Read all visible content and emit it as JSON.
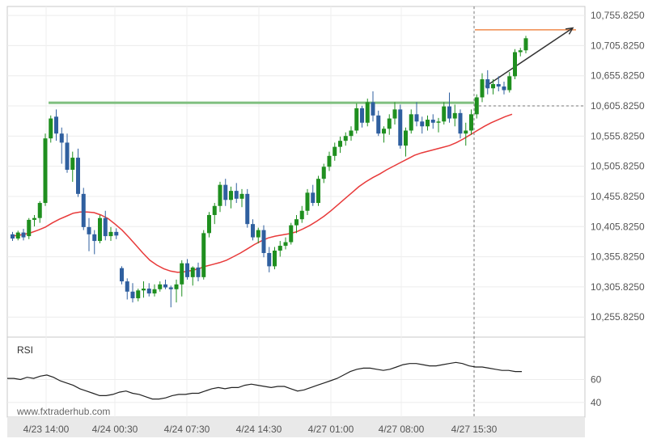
{
  "watermark": "www.fxtraderhub.com",
  "chart_data": [
    {
      "type": "candlestick",
      "y_ticks": [
        "10,755.8250",
        "10,705.8250",
        "10,655.8250",
        "10,605.8250",
        "10,555.8250",
        "10,505.8250",
        "10,455.8250",
        "10,405.8250",
        "10,355.8250",
        "10,305.8250",
        "10,255.8250"
      ],
      "y_tick_values": [
        10755.825,
        10705.825,
        10655.825,
        10605.825,
        10555.825,
        10505.825,
        10455.825,
        10405.825,
        10355.825,
        10305.825,
        10255.825
      ],
      "ylim": [
        10232,
        10768
      ],
      "x_ticks": [
        "4/23 14:00",
        "4/24 00:30",
        "4/24 07:30",
        "4/24 14:30",
        "4/27 01:00",
        "4/27 08:00",
        "4/27 15:30"
      ],
      "resistance_level": 10611,
      "current_level": 10605.825,
      "target_level": 10732,
      "grid": true,
      "colors": {
        "up": "#1f8f1f",
        "down": "#2f5f9f",
        "ma": "#e83a3a",
        "resistance": "#7fbf7f",
        "target": "#f08a4b",
        "arrow": "#333333",
        "rsi": "#222222"
      },
      "candles": [
        {
          "o": 10393,
          "h": 10397,
          "l": 10382,
          "c": 10386
        },
        {
          "o": 10386,
          "h": 10399,
          "l": 10383,
          "c": 10396
        },
        {
          "o": 10396,
          "h": 10402,
          "l": 10383,
          "c": 10388
        },
        {
          "o": 10390,
          "h": 10420,
          "l": 10385,
          "c": 10417
        },
        {
          "o": 10417,
          "h": 10425,
          "l": 10406,
          "c": 10420
        },
        {
          "o": 10420,
          "h": 10448,
          "l": 10412,
          "c": 10445
        },
        {
          "o": 10445,
          "h": 10560,
          "l": 10440,
          "c": 10552
        },
        {
          "o": 10552,
          "h": 10590,
          "l": 10545,
          "c": 10585
        },
        {
          "o": 10588,
          "h": 10600,
          "l": 10548,
          "c": 10560
        },
        {
          "o": 10560,
          "h": 10570,
          "l": 10510,
          "c": 10545
        },
        {
          "o": 10545,
          "h": 10560,
          "l": 10495,
          "c": 10500
        },
        {
          "o": 10500,
          "h": 10530,
          "l": 10480,
          "c": 10520
        },
        {
          "o": 10520,
          "h": 10535,
          "l": 10455,
          "c": 10460
        },
        {
          "o": 10460,
          "h": 10470,
          "l": 10400,
          "c": 10405
        },
        {
          "o": 10405,
          "h": 10420,
          "l": 10365,
          "c": 10393
        },
        {
          "o": 10393,
          "h": 10400,
          "l": 10360,
          "c": 10382
        },
        {
          "o": 10382,
          "h": 10425,
          "l": 10378,
          "c": 10420
        },
        {
          "o": 10420,
          "h": 10432,
          "l": 10383,
          "c": 10390
        },
        {
          "o": 10390,
          "h": 10405,
          "l": 10382,
          "c": 10397
        },
        {
          "o": 10397,
          "h": 10403,
          "l": 10385,
          "c": 10391
        },
        {
          "o": 10337,
          "h": 10340,
          "l": 10310,
          "c": 10315
        },
        {
          "o": 10315,
          "h": 10320,
          "l": 10285,
          "c": 10298
        },
        {
          "o": 10298,
          "h": 10312,
          "l": 10280,
          "c": 10287
        },
        {
          "o": 10287,
          "h": 10303,
          "l": 10282,
          "c": 10300
        },
        {
          "o": 10300,
          "h": 10315,
          "l": 10288,
          "c": 10303
        },
        {
          "o": 10303,
          "h": 10312,
          "l": 10290,
          "c": 10295
        },
        {
          "o": 10295,
          "h": 10310,
          "l": 10290,
          "c": 10302
        },
        {
          "o": 10302,
          "h": 10315,
          "l": 10298,
          "c": 10310
        },
        {
          "o": 10310,
          "h": 10318,
          "l": 10302,
          "c": 10305
        },
        {
          "o": 10305,
          "h": 10308,
          "l": 10272,
          "c": 10302
        },
        {
          "o": 10302,
          "h": 10318,
          "l": 10280,
          "c": 10310
        },
        {
          "o": 10310,
          "h": 10350,
          "l": 10290,
          "c": 10345
        },
        {
          "o": 10345,
          "h": 10352,
          "l": 10318,
          "c": 10322
        },
        {
          "o": 10322,
          "h": 10340,
          "l": 10308,
          "c": 10338
        },
        {
          "o": 10338,
          "h": 10346,
          "l": 10315,
          "c": 10322
        },
        {
          "o": 10322,
          "h": 10400,
          "l": 10318,
          "c": 10395
        },
        {
          "o": 10395,
          "h": 10430,
          "l": 10388,
          "c": 10425
        },
        {
          "o": 10425,
          "h": 10445,
          "l": 10410,
          "c": 10440
        },
        {
          "o": 10440,
          "h": 10480,
          "l": 10430,
          "c": 10475
        },
        {
          "o": 10475,
          "h": 10485,
          "l": 10440,
          "c": 10450
        },
        {
          "o": 10450,
          "h": 10472,
          "l": 10436,
          "c": 10465
        },
        {
          "o": 10465,
          "h": 10478,
          "l": 10445,
          "c": 10452
        },
        {
          "o": 10452,
          "h": 10468,
          "l": 10438,
          "c": 10460
        },
        {
          "o": 10460,
          "h": 10468,
          "l": 10404,
          "c": 10410
        },
        {
          "o": 10410,
          "h": 10418,
          "l": 10383,
          "c": 10388
        },
        {
          "o": 10388,
          "h": 10404,
          "l": 10378,
          "c": 10400
        },
        {
          "o": 10400,
          "h": 10408,
          "l": 10355,
          "c": 10362
        },
        {
          "o": 10362,
          "h": 10372,
          "l": 10330,
          "c": 10340
        },
        {
          "o": 10340,
          "h": 10372,
          "l": 10335,
          "c": 10366
        },
        {
          "o": 10366,
          "h": 10382,
          "l": 10356,
          "c": 10374
        },
        {
          "o": 10374,
          "h": 10388,
          "l": 10368,
          "c": 10380
        },
        {
          "o": 10380,
          "h": 10412,
          "l": 10376,
          "c": 10408
        },
        {
          "o": 10408,
          "h": 10425,
          "l": 10395,
          "c": 10418
        },
        {
          "o": 10418,
          "h": 10440,
          "l": 10412,
          "c": 10432
        },
        {
          "o": 10432,
          "h": 10468,
          "l": 10425,
          "c": 10462
        },
        {
          "o": 10462,
          "h": 10475,
          "l": 10440,
          "c": 10445
        },
        {
          "o": 10445,
          "h": 10490,
          "l": 10440,
          "c": 10485
        },
        {
          "o": 10485,
          "h": 10510,
          "l": 10478,
          "c": 10505
        },
        {
          "o": 10505,
          "h": 10530,
          "l": 10498,
          "c": 10523
        },
        {
          "o": 10523,
          "h": 10545,
          "l": 10515,
          "c": 10538
        },
        {
          "o": 10538,
          "h": 10555,
          "l": 10528,
          "c": 10548
        },
        {
          "o": 10548,
          "h": 10562,
          "l": 10540,
          "c": 10556
        },
        {
          "o": 10556,
          "h": 10572,
          "l": 10548,
          "c": 10565
        },
        {
          "o": 10565,
          "h": 10610,
          "l": 10560,
          "c": 10602
        },
        {
          "o": 10602,
          "h": 10606,
          "l": 10570,
          "c": 10578
        },
        {
          "o": 10578,
          "h": 10618,
          "l": 10572,
          "c": 10612
        },
        {
          "o": 10612,
          "h": 10630,
          "l": 10580,
          "c": 10590
        },
        {
          "o": 10590,
          "h": 10598,
          "l": 10556,
          "c": 10560
        },
        {
          "o": 10560,
          "h": 10572,
          "l": 10545,
          "c": 10568
        },
        {
          "o": 10568,
          "h": 10592,
          "l": 10558,
          "c": 10585
        },
        {
          "o": 10585,
          "h": 10612,
          "l": 10575,
          "c": 10600
        },
        {
          "o": 10600,
          "h": 10608,
          "l": 10535,
          "c": 10540
        },
        {
          "o": 10540,
          "h": 10570,
          "l": 10522,
          "c": 10565
        },
        {
          "o": 10565,
          "h": 10600,
          "l": 10560,
          "c": 10592
        },
        {
          "o": 10592,
          "h": 10612,
          "l": 10572,
          "c": 10580
        },
        {
          "o": 10580,
          "h": 10588,
          "l": 10560,
          "c": 10572
        },
        {
          "o": 10572,
          "h": 10590,
          "l": 10565,
          "c": 10583
        },
        {
          "o": 10583,
          "h": 10592,
          "l": 10568,
          "c": 10578
        },
        {
          "o": 10578,
          "h": 10586,
          "l": 10562,
          "c": 10580
        },
        {
          "o": 10580,
          "h": 10612,
          "l": 10575,
          "c": 10605
        },
        {
          "o": 10605,
          "h": 10628,
          "l": 10578,
          "c": 10585
        },
        {
          "o": 10585,
          "h": 10608,
          "l": 10572,
          "c": 10594
        },
        {
          "o": 10594,
          "h": 10600,
          "l": 10552,
          "c": 10560
        },
        {
          "o": 10560,
          "h": 10578,
          "l": 10540,
          "c": 10565
        },
        {
          "o": 10565,
          "h": 10600,
          "l": 10558,
          "c": 10592
        },
        {
          "o": 10592,
          "h": 10625,
          "l": 10585,
          "c": 10620
        },
        {
          "o": 10620,
          "h": 10660,
          "l": 10612,
          "c": 10650
        },
        {
          "o": 10650,
          "h": 10665,
          "l": 10625,
          "c": 10635
        },
        {
          "o": 10635,
          "h": 10650,
          "l": 10625,
          "c": 10642
        },
        {
          "o": 10642,
          "h": 10655,
          "l": 10630,
          "c": 10638
        },
        {
          "o": 10638,
          "h": 10646,
          "l": 10625,
          "c": 10632
        },
        {
          "o": 10632,
          "h": 10662,
          "l": 10628,
          "c": 10655
        },
        {
          "o": 10655,
          "h": 10700,
          "l": 10650,
          "c": 10695
        },
        {
          "o": 10695,
          "h": 10702,
          "l": 10688,
          "c": 10698
        },
        {
          "o": 10698,
          "h": 10722,
          "l": 10693,
          "c": 10718
        }
      ],
      "ma": [
        10390,
        10391,
        10393,
        10396,
        10400,
        10405,
        10412,
        10418,
        10423,
        10428,
        10430,
        10430,
        10429,
        10425,
        10419,
        10410,
        10400,
        10388,
        10375,
        10362,
        10350,
        10342,
        10336,
        10332,
        10330,
        10331,
        10333,
        10336,
        10340,
        10343,
        10346,
        10350,
        10356,
        10362,
        10369,
        10376,
        10382,
        10387,
        10390,
        10392,
        10394,
        10397,
        10402,
        10408,
        10415,
        10423,
        10432,
        10442,
        10452,
        10462,
        10472,
        10480,
        10487,
        10493,
        10500,
        10506,
        10512,
        10518,
        10524,
        10528,
        10531,
        10534,
        10537,
        10540,
        10545,
        10551,
        10558,
        10565,
        10572,
        10578,
        10583,
        10588,
        10592
      ],
      "rsi_ticks": [
        "60",
        "40"
      ],
      "rsi_tick_values": [
        60,
        40
      ],
      "rsi_range": [
        30,
        95
      ],
      "rsi": [
        61,
        61,
        60,
        62,
        61,
        63,
        64,
        62,
        59,
        57,
        55,
        52,
        50,
        48,
        46,
        46,
        47,
        49,
        50,
        48,
        47,
        45,
        43,
        43,
        44,
        46,
        47,
        47,
        48,
        48,
        50,
        52,
        53,
        52,
        53,
        53,
        55,
        56,
        55,
        54,
        53,
        54,
        54,
        52,
        50,
        51,
        53,
        55,
        57,
        59,
        61,
        64,
        67,
        69,
        70,
        70,
        69,
        68,
        69,
        71,
        73,
        74,
        74,
        73,
        72,
        72,
        73,
        74,
        75,
        74,
        72,
        71,
        71,
        70,
        69,
        68,
        68,
        67,
        67
      ],
      "rsi_label": "RSI"
    }
  ]
}
